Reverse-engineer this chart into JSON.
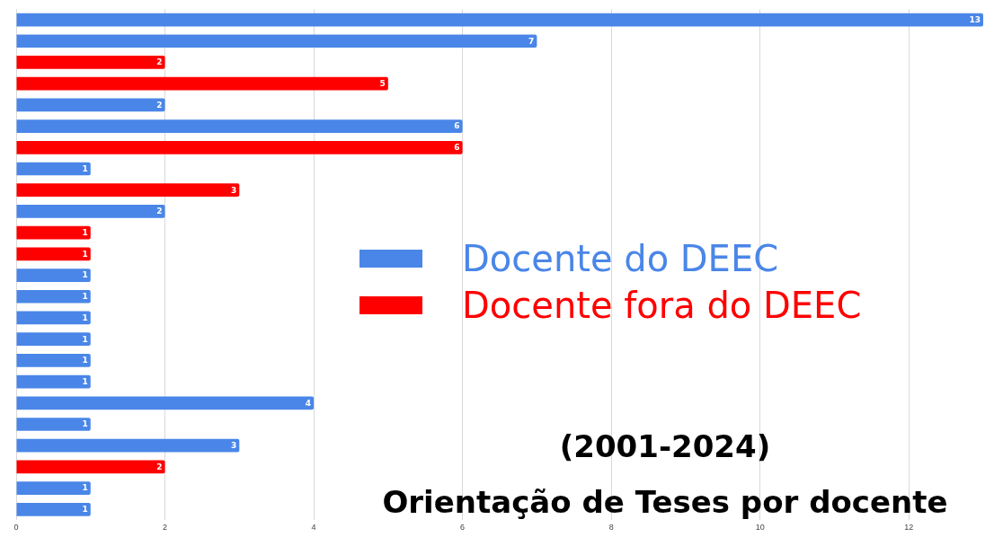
{
  "chart_data": {
    "type": "bar",
    "orientation": "horizontal",
    "title": "Orientação de Teses por docente",
    "subtitle": "(2001-2024)",
    "categories": [
      null,
      null,
      null,
      null,
      null,
      null,
      null,
      null,
      null,
      null,
      null,
      null,
      null,
      null,
      null,
      null,
      null,
      null,
      null,
      null,
      null,
      null,
      null,
      null
    ],
    "series": [
      {
        "name": "Docente do DEEC",
        "color": "#4a86e8",
        "values": [
          13,
          7,
          null,
          null,
          2,
          6,
          null,
          1,
          null,
          2,
          null,
          null,
          1,
          1,
          1,
          1,
          1,
          1,
          4,
          1,
          3,
          null,
          1,
          1
        ]
      },
      {
        "name": "Docente fora do DEEC",
        "color": "#ff0000",
        "values": [
          null,
          null,
          2,
          5,
          null,
          null,
          6,
          null,
          3,
          null,
          1,
          1,
          null,
          null,
          null,
          null,
          null,
          null,
          null,
          null,
          null,
          2,
          null,
          null
        ]
      }
    ],
    "xlim": [
      0,
      13
    ],
    "xticks": [
      0,
      2,
      4,
      6,
      8,
      10,
      12
    ],
    "grid": "x",
    "legend": "right",
    "data_labels": true
  }
}
